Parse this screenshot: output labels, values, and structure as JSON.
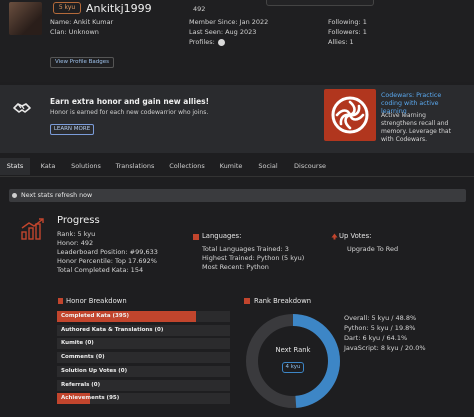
{
  "profile": {
    "rank_badge": "5 kyu",
    "username": "Ankitkj1999",
    "honor": "492",
    "name": "Name: Ankit Kumar",
    "clan": "Clan: Unknown",
    "view_badges": "View Profile Badges",
    "member_since": "Member Since: Jan 2022",
    "last_seen": "Last Seen: Aug 2023",
    "profiles_label": "Profiles:",
    "following": "Following: 1",
    "followers": "Followers: 1",
    "allies": "Allies: 1"
  },
  "banner": {
    "title": "Earn extra honor and gain new allies!",
    "text": "Honor is earned for each new codewarrior who joins.",
    "button": "LEARN MORE"
  },
  "ad": {
    "title": "Codewars: Practice coding with active learning",
    "text": "Active learning strengthens recall and memory. Leverage that with Codewars."
  },
  "tabs": [
    "Stats",
    "Kata",
    "Solutions",
    "Translations",
    "Collections",
    "Kumite",
    "Social",
    "Discourse"
  ],
  "notice": "Next stats refresh now",
  "progress": {
    "title": "Progress",
    "rank": "Rank: 5 kyu",
    "honor": "Honor: 492",
    "leaderboard": "Leaderboard Position: #99,633",
    "percentile": "Honor Percentile: Top 17.692%",
    "completed": "Total Completed Kata: 154"
  },
  "languages": {
    "title": "Languages:",
    "trained": "Total Languages Trained: 3",
    "highest": "Highest Trained: Python (5 kyu)",
    "recent": "Most Recent: Python"
  },
  "upvotes": {
    "title": "Up Votes:",
    "link": "Upgrade To Red"
  },
  "honor_breakdown": {
    "title": "Honor Breakdown",
    "rows": [
      {
        "label": "Completed Kata (395)",
        "fraction": 0.803
      },
      {
        "label": "Authored Kata & Translations (0)",
        "fraction": 0
      },
      {
        "label": "Kumite (0)",
        "fraction": 0
      },
      {
        "label": "Comments (0)",
        "fraction": 0
      },
      {
        "label": "Solution Up Votes (0)",
        "fraction": 0
      },
      {
        "label": "Referrals (0)",
        "fraction": 0
      },
      {
        "label": "Achievements (95)",
        "fraction": 0.193
      }
    ]
  },
  "rank_breakdown": {
    "title": "Rank Breakdown",
    "center_label": "Next Rank",
    "center_badge": "4 kyu",
    "progress_fraction": 0.488,
    "lines": [
      "Overall: 5 kyu / 48.8%",
      "Python: 5 kyu / 19.8%",
      "Dart: 6 kyu / 64.1%",
      "JavaScript: 8 kyu / 20.0%"
    ]
  },
  "colors": {
    "accent_red": "#c2452d",
    "ring_blue": "#3d86c6",
    "link_blue": "#5aa0e8"
  }
}
